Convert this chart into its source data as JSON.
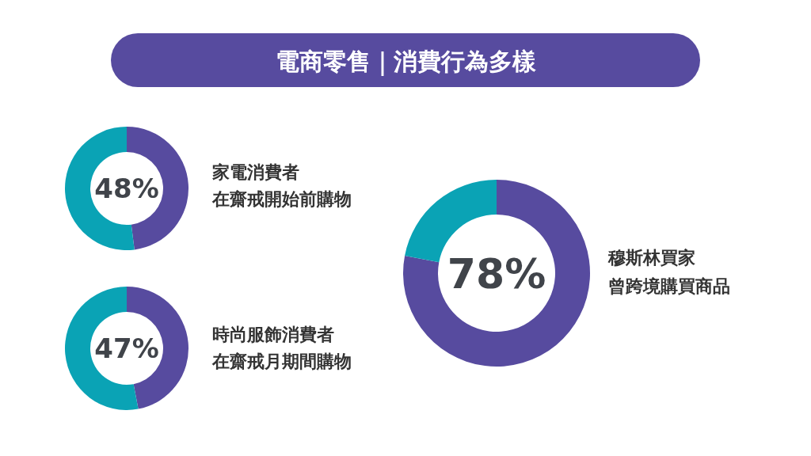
{
  "chart_data": [
    {
      "type": "other",
      "title": "電商零售｜消費行為多樣",
      "color": "#574b9f"
    },
    {
      "type": "donut",
      "categories": [
        null,
        null
      ],
      "values": [
        48,
        52
      ],
      "colors": [
        "#574b9f",
        "#0aa3b5"
      ],
      "value_labels": [
        "48%",
        null
      ],
      "annotations": [
        "家電消費者",
        "在齋戒開始前購物"
      ]
    },
    {
      "type": "donut",
      "categories": [
        null,
        null
      ],
      "values": [
        47,
        53
      ],
      "colors": [
        "#574b9f",
        "#0aa3b5"
      ],
      "value_labels": [
        "47%",
        null
      ],
      "annotations": [
        "時尚服飾消費者",
        "在齋戒月期間購物"
      ]
    },
    {
      "type": "donut",
      "categories": [
        null,
        null
      ],
      "values": [
        78,
        22
      ],
      "colors": [
        "#574b9f",
        "#0aa3b5"
      ],
      "value_labels": [
        "78%",
        null
      ],
      "annotations": [
        "穆斯林買家",
        "曾跨境購買商品"
      ]
    }
  ]
}
